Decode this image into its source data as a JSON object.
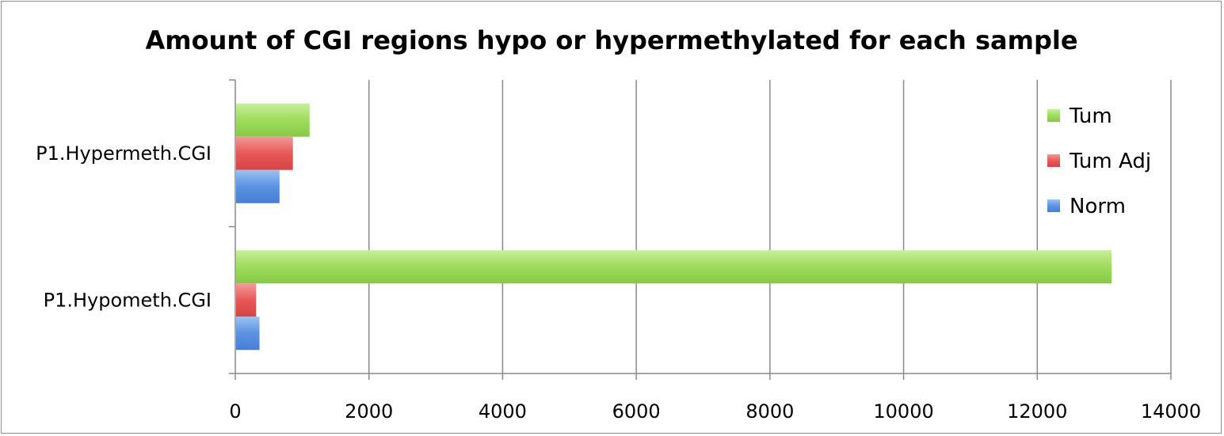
{
  "chart_data": {
    "type": "bar",
    "orientation": "horizontal",
    "title": "Amount of CGI regions hypo or hypermethylated for each sample",
    "xlabel": "",
    "ylabel": "",
    "categories": [
      "P1.Hypermeth.CGI",
      "P1.Hypometh.CGI"
    ],
    "series": [
      {
        "name": "Tum",
        "color": "#9bd75a",
        "values": [
          1100,
          13100
        ]
      },
      {
        "name": "Tum Adj",
        "color": "#e85a5a",
        "values": [
          850,
          300
        ]
      },
      {
        "name": "Norm",
        "color": "#5a90e0",
        "values": [
          650,
          350
        ]
      }
    ],
    "xlim": [
      0,
      14000
    ],
    "xticks": [
      "0",
      "2000",
      "4000",
      "6000",
      "8000",
      "10000",
      "12000",
      "14000"
    ],
    "grid": "vertical major gridlines",
    "legend_position": "right"
  }
}
